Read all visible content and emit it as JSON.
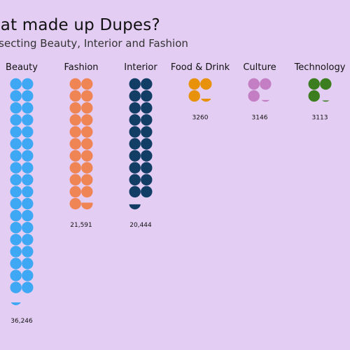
{
  "title": "hat made up Dupes?",
  "subtitle": "rsecting Beauty, Interior and Fashion",
  "chart_data": {
    "type": "pictogram",
    "categories": [
      "Beauty",
      "Fashion",
      "Interior",
      "Food & Drink",
      "Culture",
      "Technology"
    ],
    "values": [
      36246,
      21591,
      20444,
      3260,
      3146,
      3113
    ],
    "value_labels": [
      "36,246",
      "21,591",
      "20,444",
      "3260",
      "3146",
      "3113"
    ],
    "unit_per_icon": 1000,
    "colors": [
      "#3fa8f5",
      "#ef8455",
      "#123e66",
      "#e8920c",
      "#c37ec4",
      "#3b7d1f"
    ]
  }
}
